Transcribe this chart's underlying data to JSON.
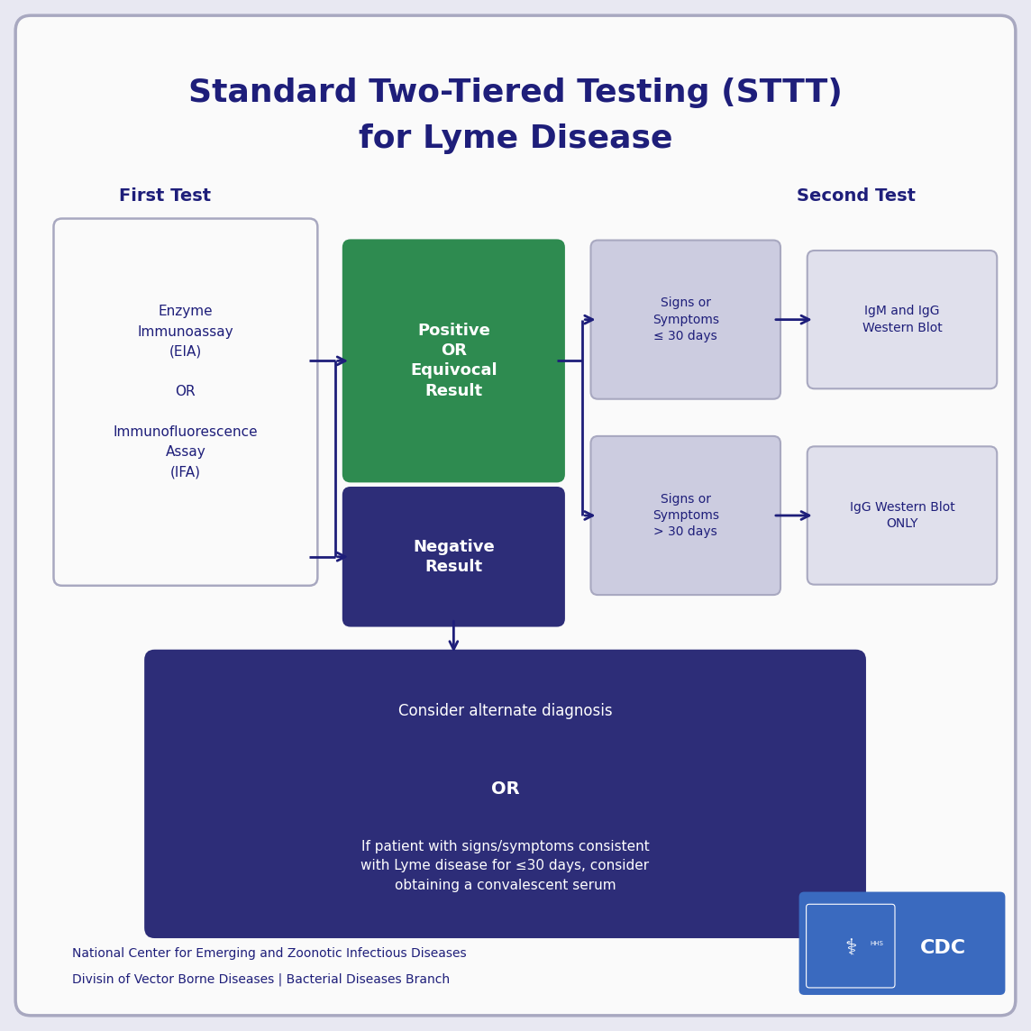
{
  "title_line1": "Standard Two-Tiered Testing (STTT)",
  "title_line2": "for Lyme Disease",
  "title_color": "#1e1e7a",
  "bg_outer": "#e8e8f2",
  "bg_card": "#fafafa",
  "border_color": "#a8a8c0",
  "first_test_label": "First Test",
  "second_test_label": "Second Test",
  "first_test_text": "Enzyme\nImmunoassay\n(EIA)\n\nOR\n\nImmunofluorescence\nAssay\n(IFA)",
  "positive_text": "Positive\nOR\nEquivocal\nResult",
  "negative_text": "Negative\nResult",
  "sym30_text": "Signs or\nSymptoms\n≤ 30 days",
  "symgt30_text": "Signs or\nSymptoms\n> 30 days",
  "igm_igg_text": "IgM and IgG\nWestern Blot",
  "igg_only_text": "IgG Western Blot\nONLY",
  "bottom_line1": "Consider alternate diagnosis",
  "bottom_or": "OR",
  "bottom_line2": "If patient with signs/symptoms consistent\nwith Lyme disease for ≤30 days, consider\nobtaining a convalescent serum",
  "footer1": "National Center for Emerging and Zoonotic Infectious Diseases",
  "footer2": "Divisin of Vector Borne Diseases | Bacterial Diseases Branch",
  "green": "#2e8b50",
  "dark_purple": "#2d2d78",
  "sym_bg": "#cccce0",
  "wb_bg": "#e0e0ec",
  "arrow_col": "#1e1e7a",
  "white": "#ffffff",
  "navy": "#1e1e7a",
  "cdc_blue": "#3a6abf"
}
